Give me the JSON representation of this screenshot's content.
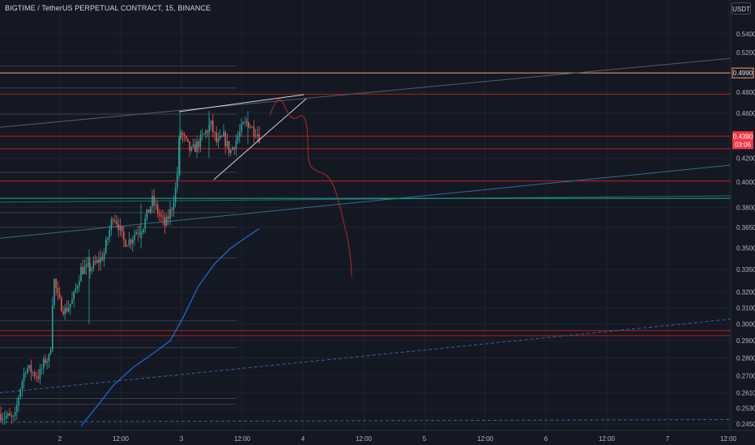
{
  "header": {
    "title": "BIGTIME / TetherUS PERPETUAL CONTRACT, 15, BINANCE",
    "currency_button": "USDT"
  },
  "colors": {
    "background": "#141823",
    "up": "#26a69a",
    "down": "#ef5350",
    "horizontal_level": "#b71c1c",
    "orange_level": "#f7a35c",
    "teal_level": "#26a69a",
    "moving_average": "#1e6fd9",
    "trendline": "#d1d4dc",
    "projection": "#b02a2a"
  },
  "chart_data": {
    "type": "candlestick",
    "y_axis": {
      "scale": "log",
      "ticks": [
        "0.5400",
        "0.5200",
        "0.4800",
        "0.4600",
        "0.4200",
        "0.4000",
        "0.3800",
        "0.3650",
        "0.3500",
        "0.3350",
        "0.3200",
        "0.3100",
        "0.3000",
        "0.2900",
        "0.2800",
        "0.2700",
        "0.2610",
        "0.2530",
        "0.2450"
      ]
    },
    "x_axis": {
      "labels": [
        "2",
        "12:00",
        "3",
        "12:00",
        "4",
        "12:00",
        "5",
        "12:00",
        "6",
        "12:00",
        "7",
        "12:00"
      ]
    },
    "price_tags": [
      {
        "label": "0.4990",
        "style": "orange-outline"
      },
      {
        "label": "0.4390",
        "countdown": "03:06",
        "style": "red-fill"
      }
    ],
    "horizontal_levels": [
      0.499,
      0.478,
      0.439,
      0.428,
      0.401,
      0.387,
      0.296,
      0.293
    ],
    "candles_summary": {
      "start_price": 0.25,
      "end_price": 0.439,
      "high": 0.462,
      "low": 0.245
    }
  }
}
